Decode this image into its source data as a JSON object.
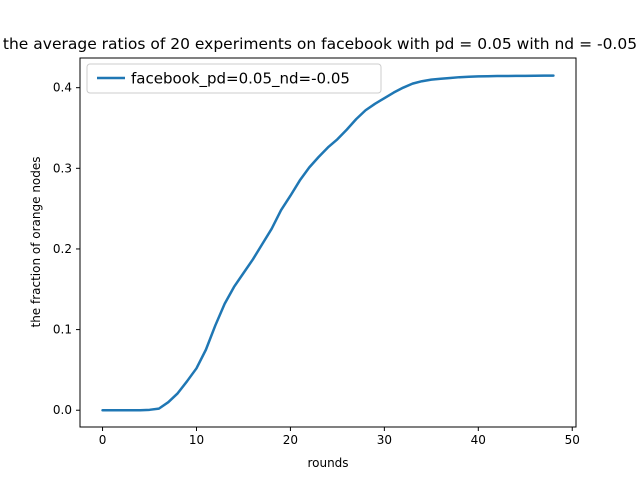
{
  "chart_data": {
    "type": "line",
    "title": "the average ratios of 20 experiments on facebook with pd = 0.05 with nd = -0.05",
    "xlabel": "rounds",
    "ylabel": "the fraction of orange nodes",
    "xlim": [
      -2.4,
      50.4
    ],
    "ylim": [
      -0.0208,
      0.4368
    ],
    "xticks": [
      0,
      10,
      20,
      30,
      40,
      50
    ],
    "yticks": [
      0.0,
      0.1,
      0.2,
      0.3,
      0.4
    ],
    "xtick_labels": [
      "0",
      "10",
      "20",
      "30",
      "40",
      "50"
    ],
    "ytick_labels": [
      "0.0",
      "0.1",
      "0.2",
      "0.3",
      "0.4"
    ],
    "grid": false,
    "legend_position": "top-left",
    "series": [
      {
        "name": "facebook_pd=0.05_nd=-0.05",
        "color": "#1f77b4",
        "x": [
          0,
          1,
          2,
          3,
          4,
          5,
          6,
          7,
          8,
          9,
          10,
          11,
          12,
          13,
          14,
          15,
          16,
          17,
          18,
          19,
          20,
          21,
          22,
          23,
          24,
          25,
          26,
          27,
          28,
          29,
          30,
          31,
          32,
          33,
          34,
          35,
          36,
          37,
          38,
          39,
          40,
          41,
          42,
          43,
          44,
          45,
          46,
          47,
          48
        ],
        "values": [
          0.0,
          0.0,
          0.0,
          0.0,
          0.0,
          0.0005,
          0.002,
          0.01,
          0.021,
          0.036,
          0.052,
          0.075,
          0.105,
          0.132,
          0.153,
          0.17,
          0.187,
          0.206,
          0.225,
          0.248,
          0.266,
          0.285,
          0.301,
          0.314,
          0.326,
          0.336,
          0.348,
          0.361,
          0.372,
          0.38,
          0.387,
          0.394,
          0.4,
          0.405,
          0.408,
          0.41,
          0.411,
          0.412,
          0.413,
          0.4135,
          0.414,
          0.4142,
          0.4144,
          0.4145,
          0.4146,
          0.4147,
          0.4148,
          0.4149,
          0.415
        ]
      }
    ]
  }
}
